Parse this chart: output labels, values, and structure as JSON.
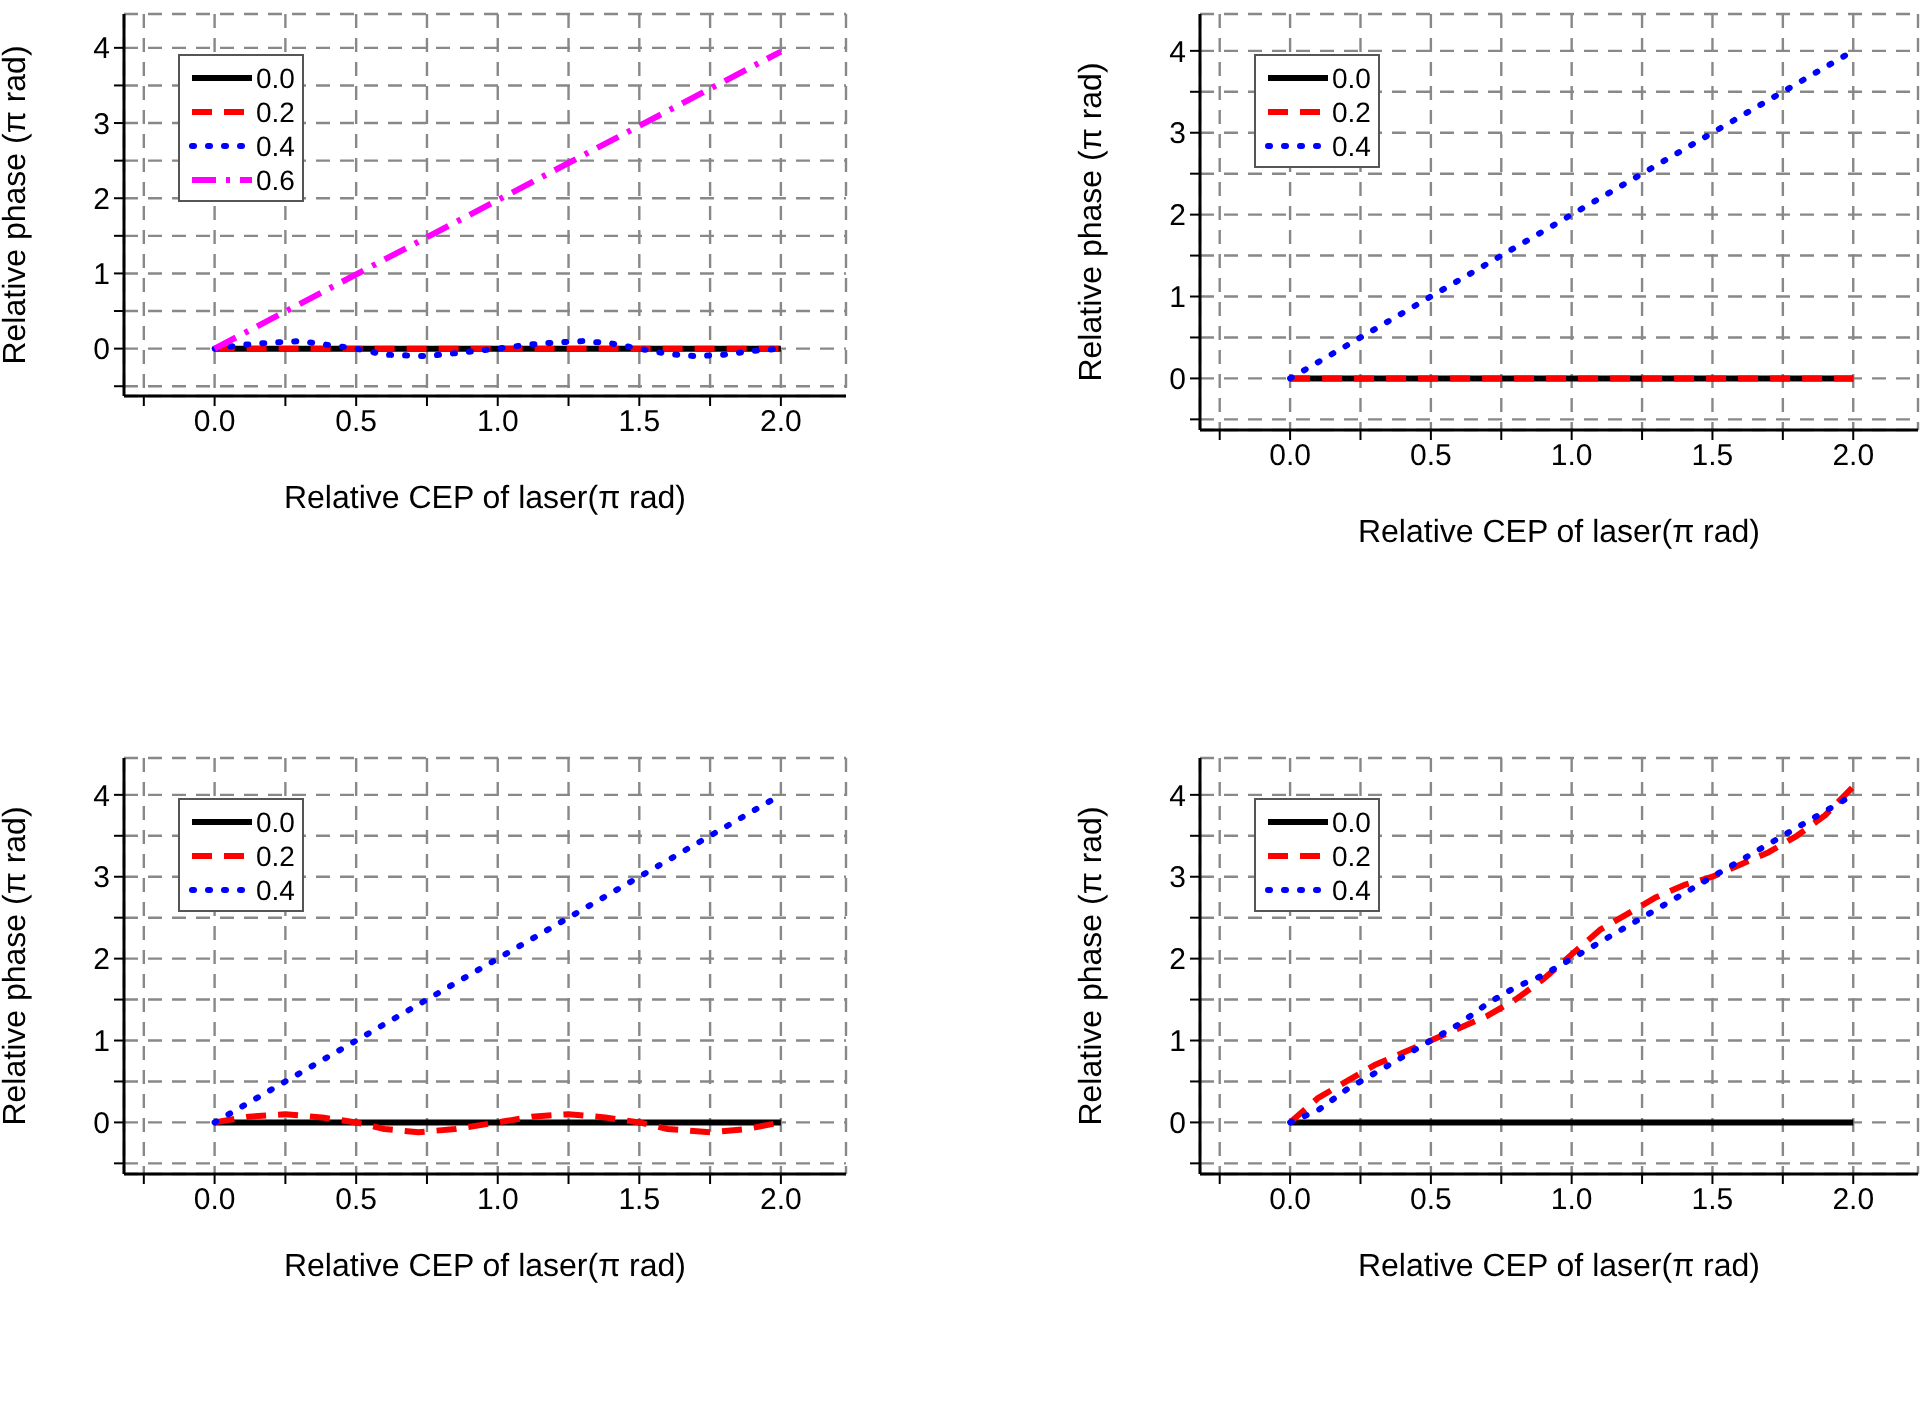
{
  "chart_data": [
    {
      "type": "line",
      "xlabel": "Relative CEP of laser(π rad)",
      "ylabel": "Relative phase (π rad)",
      "xlim": [
        -0.32,
        2.23
      ],
      "ylim": [
        -0.63,
        4.45
      ],
      "xticks": [
        {
          "value": -0.25,
          "label": null
        },
        {
          "value": 0,
          "label": "0.0"
        },
        {
          "value": 0.25,
          "label": null
        },
        {
          "value": 0.5,
          "label": "0.5"
        },
        {
          "value": 0.75,
          "label": null
        },
        {
          "value": 1,
          "label": "1.0"
        },
        {
          "value": 1.25,
          "label": null
        },
        {
          "value": 1.5,
          "label": "1.5"
        },
        {
          "value": 1.75,
          "label": null
        },
        {
          "value": 2,
          "label": "2.0"
        }
      ],
      "yticks": [
        {
          "value": -0.5,
          "label": null
        },
        0,
        {
          "value": 0.5,
          "label": null
        },
        1,
        {
          "value": 1.5,
          "label": null
        },
        2,
        {
          "value": 2.5,
          "label": null
        },
        3,
        {
          "value": 3.5,
          "label": null
        },
        4
      ],
      "grid": true,
      "legend": "top left",
      "series": [
        {
          "name": "0.0",
          "color": "#000000",
          "line_style": "solid",
          "x": [
            0,
            2
          ],
          "values": [
            0,
            0
          ]
        },
        {
          "name": "0.2",
          "color": "#ff0000",
          "line_style": "dashed",
          "x": [
            0,
            2
          ],
          "values": [
            0,
            0
          ]
        },
        {
          "name": "0.4",
          "color": "#0000ff",
          "line_style": "dotted",
          "x": [
            0,
            0.1,
            0.2,
            0.3,
            0.4,
            0.5,
            0.6,
            0.75,
            0.85,
            1.0,
            1.1,
            1.2,
            1.3,
            1.4,
            1.5,
            1.6,
            1.7,
            1.8,
            1.9,
            2.0
          ],
          "values": [
            0,
            0.05,
            0.08,
            0.1,
            0.05,
            0,
            -0.08,
            -0.1,
            -0.06,
            0,
            0.05,
            0.08,
            0.1,
            0.07,
            0,
            -0.07,
            -0.1,
            -0.08,
            -0.03,
            0
          ]
        },
        {
          "name": "0.6",
          "color": "#ff00ff",
          "line_style": "dashdot",
          "x": [
            0,
            2
          ],
          "values": [
            0,
            3.95
          ]
        }
      ]
    },
    {
      "type": "line",
      "xlabel": "Relative CEP of laser(π rad)",
      "ylabel": "Relative phase (π rad)",
      "xlim": [
        -0.32,
        2.23
      ],
      "ylim": [
        -0.63,
        4.45
      ],
      "xticks": [
        {
          "value": -0.25,
          "label": null
        },
        {
          "value": 0,
          "label": "0.0"
        },
        {
          "value": 0.25,
          "label": null
        },
        {
          "value": 0.5,
          "label": "0.5"
        },
        {
          "value": 0.75,
          "label": null
        },
        {
          "value": 1,
          "label": "1.0"
        },
        {
          "value": 1.25,
          "label": null
        },
        {
          "value": 1.5,
          "label": "1.5"
        },
        {
          "value": 1.75,
          "label": null
        },
        {
          "value": 2,
          "label": "2.0"
        }
      ],
      "yticks": [
        {
          "value": -0.5,
          "label": null
        },
        0,
        {
          "value": 0.5,
          "label": null
        },
        1,
        {
          "value": 1.5,
          "label": null
        },
        2,
        {
          "value": 2.5,
          "label": null
        },
        3,
        {
          "value": 3.5,
          "label": null
        },
        4
      ],
      "grid": true,
      "legend": "top left",
      "series": [
        {
          "name": "0.0",
          "color": "#000000",
          "line_style": "solid",
          "x": [
            0,
            2
          ],
          "values": [
            0,
            0
          ]
        },
        {
          "name": "0.2",
          "color": "#ff0000",
          "line_style": "dashed",
          "x": [
            0,
            2
          ],
          "values": [
            0,
            0
          ]
        },
        {
          "name": "0.4",
          "color": "#0000ff",
          "line_style": "dotted",
          "x": [
            0,
            2
          ],
          "values": [
            0,
            4
          ]
        }
      ]
    },
    {
      "type": "line",
      "xlabel": "Relative CEP of laser(π rad)",
      "ylabel": "Relative phase (π rad)",
      "xlim": [
        -0.32,
        2.23
      ],
      "ylim": [
        -0.63,
        4.45
      ],
      "xticks": [
        {
          "value": -0.25,
          "label": null
        },
        {
          "value": 0,
          "label": "0.0"
        },
        {
          "value": 0.25,
          "label": null
        },
        {
          "value": 0.5,
          "label": "0.5"
        },
        {
          "value": 0.75,
          "label": null
        },
        {
          "value": 1,
          "label": "1.0"
        },
        {
          "value": 1.25,
          "label": null
        },
        {
          "value": 1.5,
          "label": "1.5"
        },
        {
          "value": 1.75,
          "label": null
        },
        {
          "value": 2,
          "label": "2.0"
        }
      ],
      "yticks": [
        {
          "value": -0.5,
          "label": null
        },
        0,
        {
          "value": 0.5,
          "label": null
        },
        1,
        {
          "value": 1.5,
          "label": null
        },
        2,
        {
          "value": 2.5,
          "label": null
        },
        3,
        {
          "value": 3.5,
          "label": null
        },
        4
      ],
      "grid": true,
      "legend": "top left",
      "series": [
        {
          "name": "0.0",
          "color": "#000000",
          "line_style": "solid",
          "x": [
            0,
            2
          ],
          "values": [
            0,
            0
          ]
        },
        {
          "name": "0.2",
          "color": "#ff0000",
          "line_style": "dashed",
          "x": [
            0,
            0.12,
            0.25,
            0.38,
            0.5,
            0.6,
            0.72,
            0.85,
            1.0,
            1.12,
            1.25,
            1.38,
            1.5,
            1.6,
            1.75,
            1.88,
            2.0
          ],
          "values": [
            0,
            0.07,
            0.1,
            0.06,
            0,
            -0.08,
            -0.12,
            -0.08,
            0,
            0.07,
            0.1,
            0.06,
            0,
            -0.08,
            -0.12,
            -0.08,
            0
          ]
        },
        {
          "name": "0.4",
          "color": "#0000ff",
          "line_style": "dotted",
          "x": [
            0,
            2
          ],
          "values": [
            0,
            4
          ]
        }
      ]
    },
    {
      "type": "line",
      "xlabel": "Relative CEP of laser(π rad)",
      "ylabel": "Relative phase (π rad)",
      "xlim": [
        -0.32,
        2.23
      ],
      "ylim": [
        -0.63,
        4.45
      ],
      "xticks": [
        {
          "value": -0.25,
          "label": null
        },
        {
          "value": 0,
          "label": "0.0"
        },
        {
          "value": 0.25,
          "label": null
        },
        {
          "value": 0.5,
          "label": "0.5"
        },
        {
          "value": 0.75,
          "label": null
        },
        {
          "value": 1,
          "label": "1.0"
        },
        {
          "value": 1.25,
          "label": null
        },
        {
          "value": 1.5,
          "label": "1.5"
        },
        {
          "value": 1.75,
          "label": null
        },
        {
          "value": 2,
          "label": "2.0"
        }
      ],
      "yticks": [
        {
          "value": -0.5,
          "label": null
        },
        0,
        {
          "value": 0.5,
          "label": null
        },
        1,
        {
          "value": 1.5,
          "label": null
        },
        2,
        {
          "value": 2.5,
          "label": null
        },
        3,
        {
          "value": 3.5,
          "label": null
        },
        4
      ],
      "grid": true,
      "legend": "top left",
      "series": [
        {
          "name": "0.0",
          "color": "#000000",
          "line_style": "solid",
          "x": [
            0,
            2
          ],
          "values": [
            0,
            0
          ]
        },
        {
          "name": "0.2",
          "color": "#ff0000",
          "line_style": "dashed",
          "x": [
            0,
            0.1,
            0.2,
            0.3,
            0.4,
            0.5,
            0.6,
            0.7,
            0.8,
            0.9,
            1.0,
            1.1,
            1.2,
            1.3,
            1.4,
            1.5,
            1.6,
            1.7,
            1.8,
            1.9,
            2.0
          ],
          "values": [
            0,
            0.3,
            0.5,
            0.7,
            0.85,
            1.0,
            1.15,
            1.3,
            1.5,
            1.75,
            2.05,
            2.35,
            2.55,
            2.75,
            2.9,
            3.0,
            3.15,
            3.3,
            3.5,
            3.75,
            4.1
          ]
        },
        {
          "name": "0.4",
          "color": "#0000ff",
          "line_style": "dotted",
          "x": [
            0,
            0.1,
            0.2,
            0.3,
            0.4,
            0.5,
            0.6,
            0.7,
            0.8,
            0.9,
            1.0,
            1.1,
            1.2,
            1.3,
            1.4,
            1.5,
            1.6,
            1.7,
            1.8,
            1.9,
            2.0
          ],
          "values": [
            0,
            0.15,
            0.4,
            0.6,
            0.8,
            1.0,
            1.2,
            1.45,
            1.65,
            1.8,
            2.0,
            2.2,
            2.4,
            2.6,
            2.8,
            3.0,
            3.2,
            3.4,
            3.6,
            3.8,
            4.0
          ]
        }
      ]
    }
  ]
}
